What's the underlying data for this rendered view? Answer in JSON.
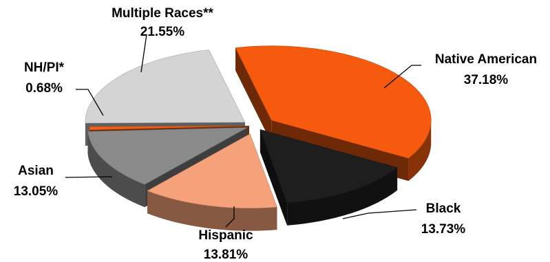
{
  "chart_data": {
    "type": "pie",
    "style": "3d-exploded",
    "title": "",
    "slices": [
      {
        "label": "Native American",
        "value": 37.18,
        "value_label": "37.18%",
        "color": "#F55A0F"
      },
      {
        "label": "Black",
        "value": 13.73,
        "value_label": "13.73%",
        "color": "#1E1E1E"
      },
      {
        "label": "Hispanic",
        "value": 13.81,
        "value_label": "13.81%",
        "color": "#F5A27A"
      },
      {
        "label": "Asian",
        "value": 13.05,
        "value_label": "13.05%",
        "color": "#8A8A8A"
      },
      {
        "label": "NH/PI*",
        "value": 0.68,
        "value_label": "0.68%",
        "color": "#F06018"
      },
      {
        "label": "Multiple Races**",
        "value": 21.55,
        "value_label": "21.55%",
        "color": "#D4D4D4"
      }
    ]
  }
}
